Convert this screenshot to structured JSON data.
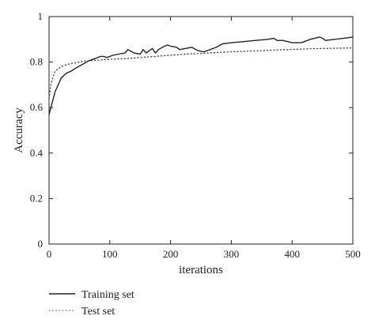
{
  "chart_data": {
    "type": "line",
    "title": "",
    "xlabel": "iterations",
    "ylabel": "Accuracy",
    "xlim": [
      0,
      500
    ],
    "ylim": [
      0,
      1
    ],
    "xticks": [
      0,
      100,
      200,
      300,
      400,
      500
    ],
    "yticks": [
      0,
      0.2,
      0.4,
      0.6,
      0.8,
      1
    ],
    "ytick_labels": [
      "0",
      "0.2",
      "0.4",
      "0.6",
      "0.8",
      "1"
    ],
    "grid": false,
    "legend": "bottom-left, below plot",
    "series": [
      {
        "name": "Training set",
        "style": "solid",
        "color": "#222222",
        "x": [
          0,
          3,
          6,
          10,
          15,
          20,
          28,
          36,
          45,
          55,
          65,
          75,
          85,
          90,
          95,
          105,
          115,
          125,
          130,
          140,
          150,
          155,
          160,
          170,
          175,
          180,
          190,
          195,
          200,
          210,
          215,
          225,
          235,
          245,
          255,
          265,
          275,
          285,
          300,
          320,
          340,
          360,
          370,
          375,
          385,
          400,
          415,
          430,
          445,
          450,
          455,
          470,
          485,
          500
        ],
        "y": [
          0.57,
          0.6,
          0.63,
          0.67,
          0.7,
          0.73,
          0.75,
          0.76,
          0.775,
          0.79,
          0.805,
          0.815,
          0.825,
          0.825,
          0.82,
          0.83,
          0.835,
          0.84,
          0.855,
          0.84,
          0.835,
          0.855,
          0.84,
          0.86,
          0.84,
          0.855,
          0.87,
          0.875,
          0.87,
          0.865,
          0.855,
          0.86,
          0.865,
          0.85,
          0.845,
          0.855,
          0.865,
          0.88,
          0.885,
          0.89,
          0.895,
          0.9,
          0.905,
          0.895,
          0.895,
          0.885,
          0.885,
          0.9,
          0.91,
          0.905,
          0.895,
          0.9,
          0.905,
          0.91
        ]
      },
      {
        "name": "Test set",
        "style": "dotted",
        "color": "#444444",
        "x": [
          0,
          3,
          6,
          10,
          15,
          20,
          30,
          40,
          50,
          60,
          75,
          90,
          100,
          125,
          150,
          175,
          200,
          225,
          250,
          275,
          300,
          325,
          350,
          375,
          400,
          425,
          450,
          475,
          500
        ],
        "y": [
          0.64,
          0.7,
          0.73,
          0.76,
          0.77,
          0.78,
          0.79,
          0.795,
          0.8,
          0.805,
          0.808,
          0.81,
          0.812,
          0.815,
          0.82,
          0.825,
          0.83,
          0.835,
          0.838,
          0.842,
          0.845,
          0.848,
          0.85,
          0.853,
          0.856,
          0.858,
          0.86,
          0.861,
          0.862
        ]
      }
    ]
  }
}
